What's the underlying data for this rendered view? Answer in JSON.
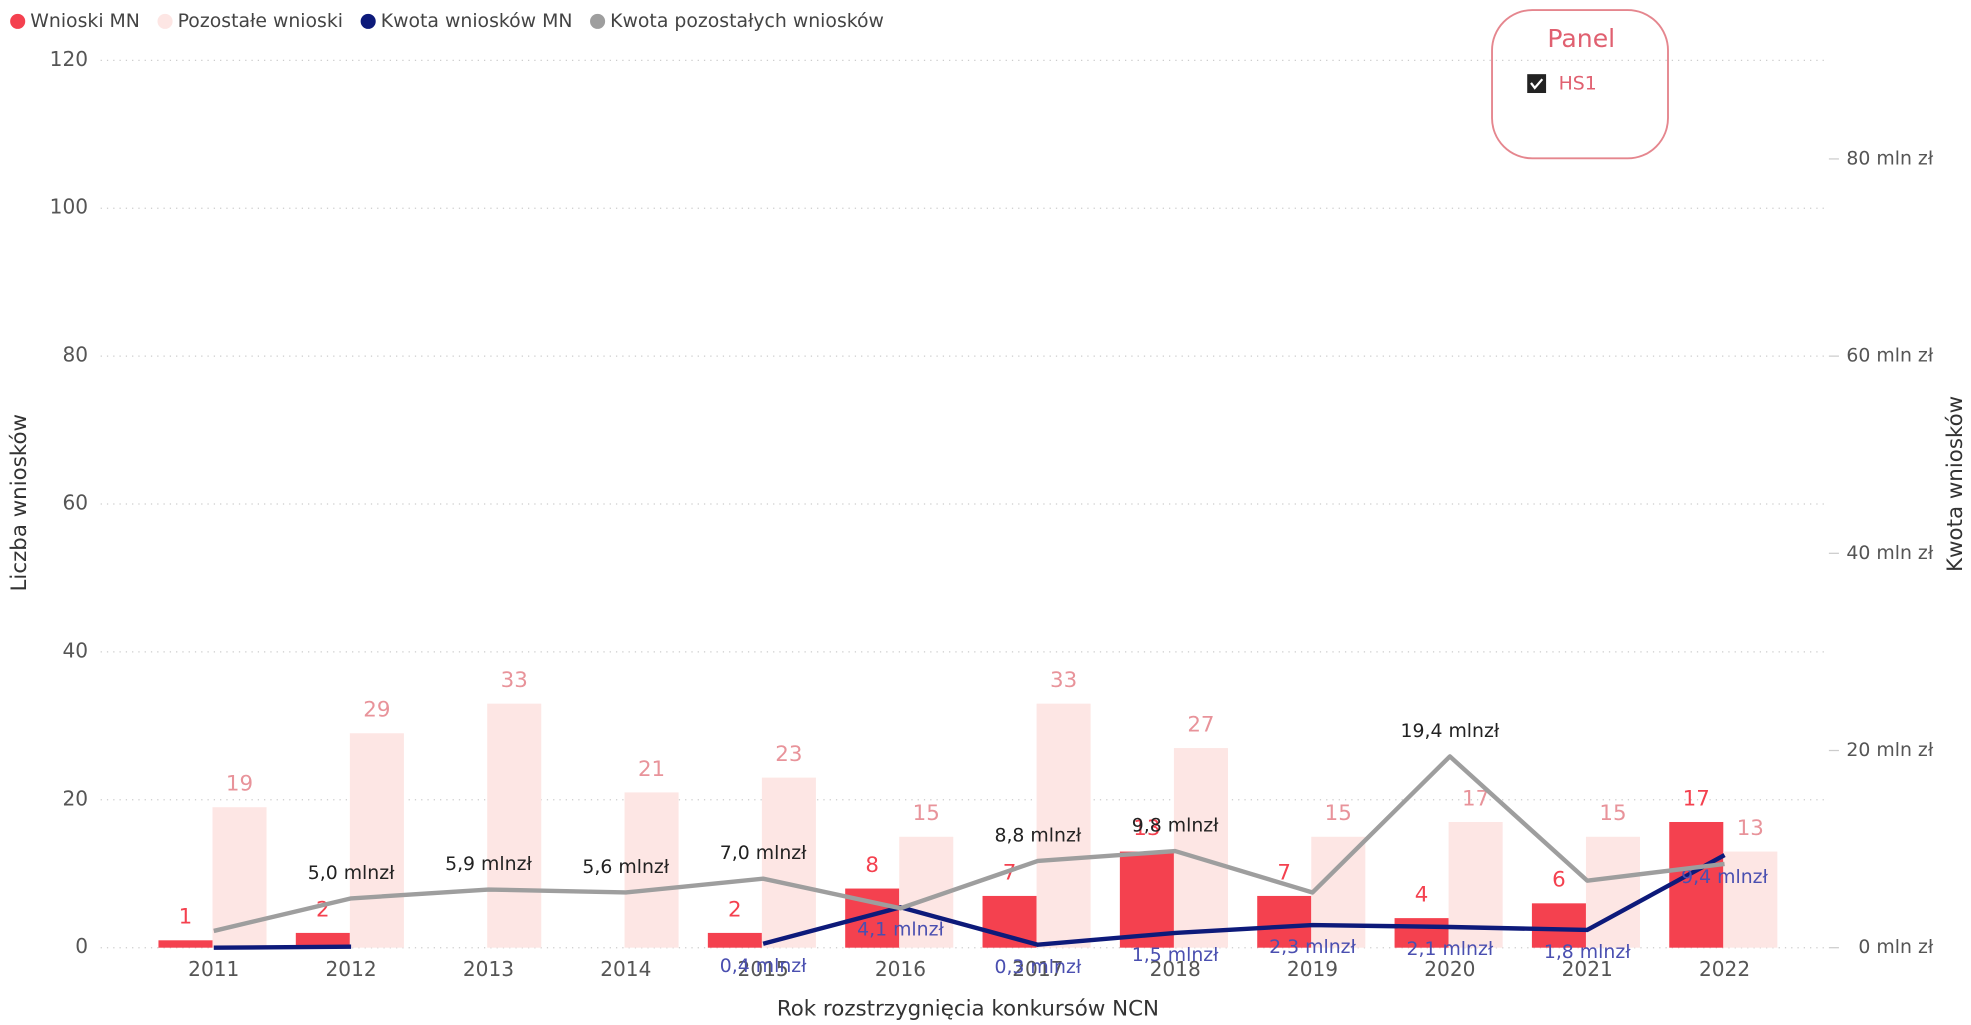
{
  "chart_data": {
    "type": "bar_line",
    "categories": [
      "2011",
      "2012",
      "2013",
      "2014",
      "2015",
      "2016",
      "2017",
      "2018",
      "2019",
      "2020",
      "2021",
      "2022"
    ],
    "series": [
      {
        "name": "Wnioski MN",
        "color": "#f4414f",
        "kind": "bar",
        "values": [
          1,
          2,
          null,
          null,
          2,
          8,
          7,
          13,
          7,
          4,
          6,
          17
        ]
      },
      {
        "name": "Pozostałe wnioski",
        "color": "#fde6e4",
        "label_color": "#e8939a",
        "kind": "bar",
        "values": [
          19,
          29,
          33,
          21,
          23,
          15,
          33,
          27,
          15,
          17,
          15,
          13
        ]
      },
      {
        "name": "Kwota wniosków MN",
        "color": "#0d1a7a",
        "label_color": "#4a4fb0",
        "kind": "line",
        "axis": "y2",
        "values": [
          0.0,
          0.1,
          null,
          null,
          0.4,
          4.1,
          0.3,
          1.5,
          2.3,
          2.1,
          1.8,
          9.4
        ],
        "value_labels": [
          null,
          null,
          null,
          null,
          "0,4 mlnzł",
          "4,1 mlnzł",
          "0,3 mlnzł",
          "1,5 mlnzł",
          "2,3 mlnzł",
          "2,1 mlnzł",
          "1,8 mlnzł",
          "9,4 mlnzł"
        ]
      },
      {
        "name": "Kwota pozostałych wniosków",
        "color": "#9e9e9e",
        "label_color": "#222",
        "kind": "line",
        "axis": "y2",
        "values": [
          1.7,
          5.0,
          5.9,
          5.6,
          7.0,
          4.0,
          8.8,
          9.8,
          5.6,
          19.4,
          6.8,
          8.5
        ],
        "value_labels": [
          null,
          "5,0 mlnzł",
          "5,9 mlnzł",
          "5,6 mlnzł",
          "7,0 mlnzł",
          null,
          "8,8 mlnzł",
          "9,8 mlnzł",
          null,
          "19,4 mlnzł",
          null,
          null
        ]
      }
    ],
    "xlabel": "Rok rozstrzygnięcia konkursów NCN",
    "ylabel": "Liczba wniosków",
    "y2label": "Kwota wniosków",
    "ylim": [
      0,
      120
    ],
    "yticks": [
      0,
      20,
      40,
      60,
      80,
      100,
      120
    ],
    "y2lim": [
      0,
      90
    ],
    "y2ticks": [
      {
        "value": 0,
        "label": "0 mln zł"
      },
      {
        "value": 20,
        "label": "20 mln zł"
      },
      {
        "value": 40,
        "label": "40 mln zł"
      },
      {
        "value": 60,
        "label": "60 mln zł"
      },
      {
        "value": 80,
        "label": "80 mln zł"
      }
    ],
    "grid": true,
    "legend": "top-left"
  },
  "panel": {
    "title": "Panel",
    "items": [
      "HS1"
    ]
  }
}
